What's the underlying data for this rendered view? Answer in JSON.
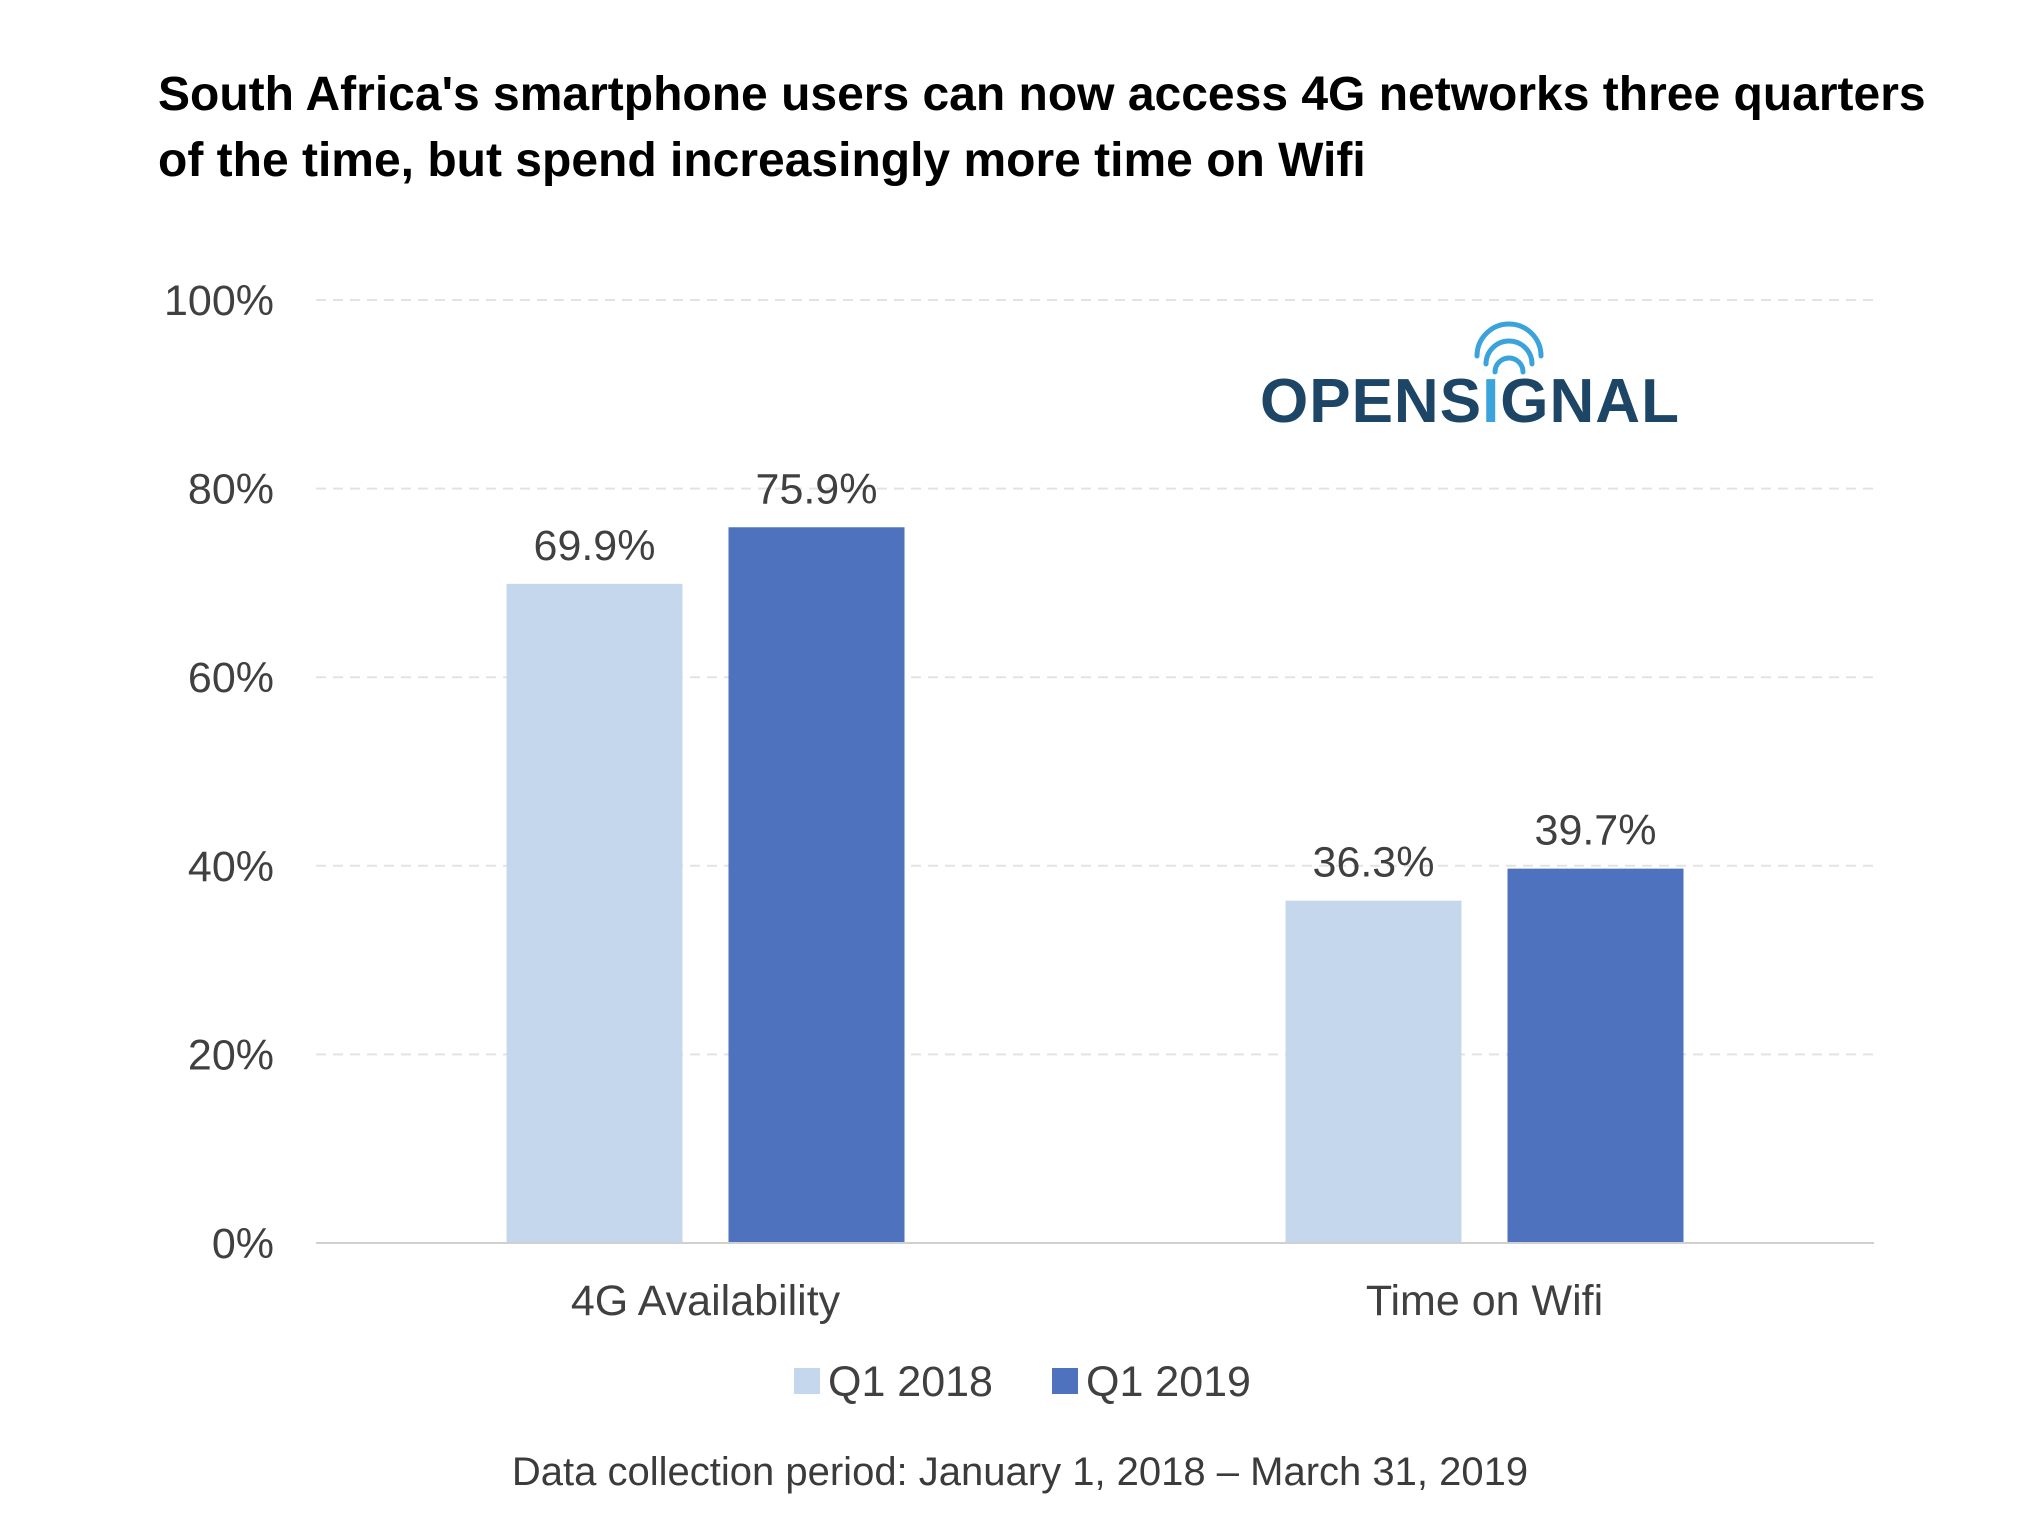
{
  "chart_data": {
    "type": "bar",
    "title": "South Africa's smartphone users can now access 4G networks three quarters of the time, but spend increasingly more time on Wifi",
    "categories": [
      "4G Availability",
      "Time on Wifi"
    ],
    "series": [
      {
        "name": "Q1 2018",
        "color": "#c5d7ec",
        "values": [
          69.9,
          36.3
        ],
        "labels": [
          "69.9%",
          "36.3%"
        ]
      },
      {
        "name": "Q1 2019",
        "color": "#4e72bd",
        "values": [
          75.9,
          39.7
        ],
        "labels": [
          "75.9%",
          "39.7%"
        ]
      }
    ],
    "ylim": [
      0,
      100
    ],
    "yticks": [
      0,
      20,
      40,
      60,
      80,
      100
    ],
    "ytick_labels": [
      "0%",
      "20%",
      "40%",
      "60%",
      "80%",
      "100%"
    ],
    "xlabel": "",
    "ylabel": "",
    "grid": true,
    "legend_position": "bottom-center"
  },
  "logo": {
    "text_left": "OPENS",
    "text_i": "I",
    "text_right": "GNAL",
    "color": "#1d4566",
    "accent_color": "#3aa3dc",
    "icon": "wifi-signal-icon"
  },
  "footnote": "Data collection period: January 1, 2018 – March 31, 2019"
}
